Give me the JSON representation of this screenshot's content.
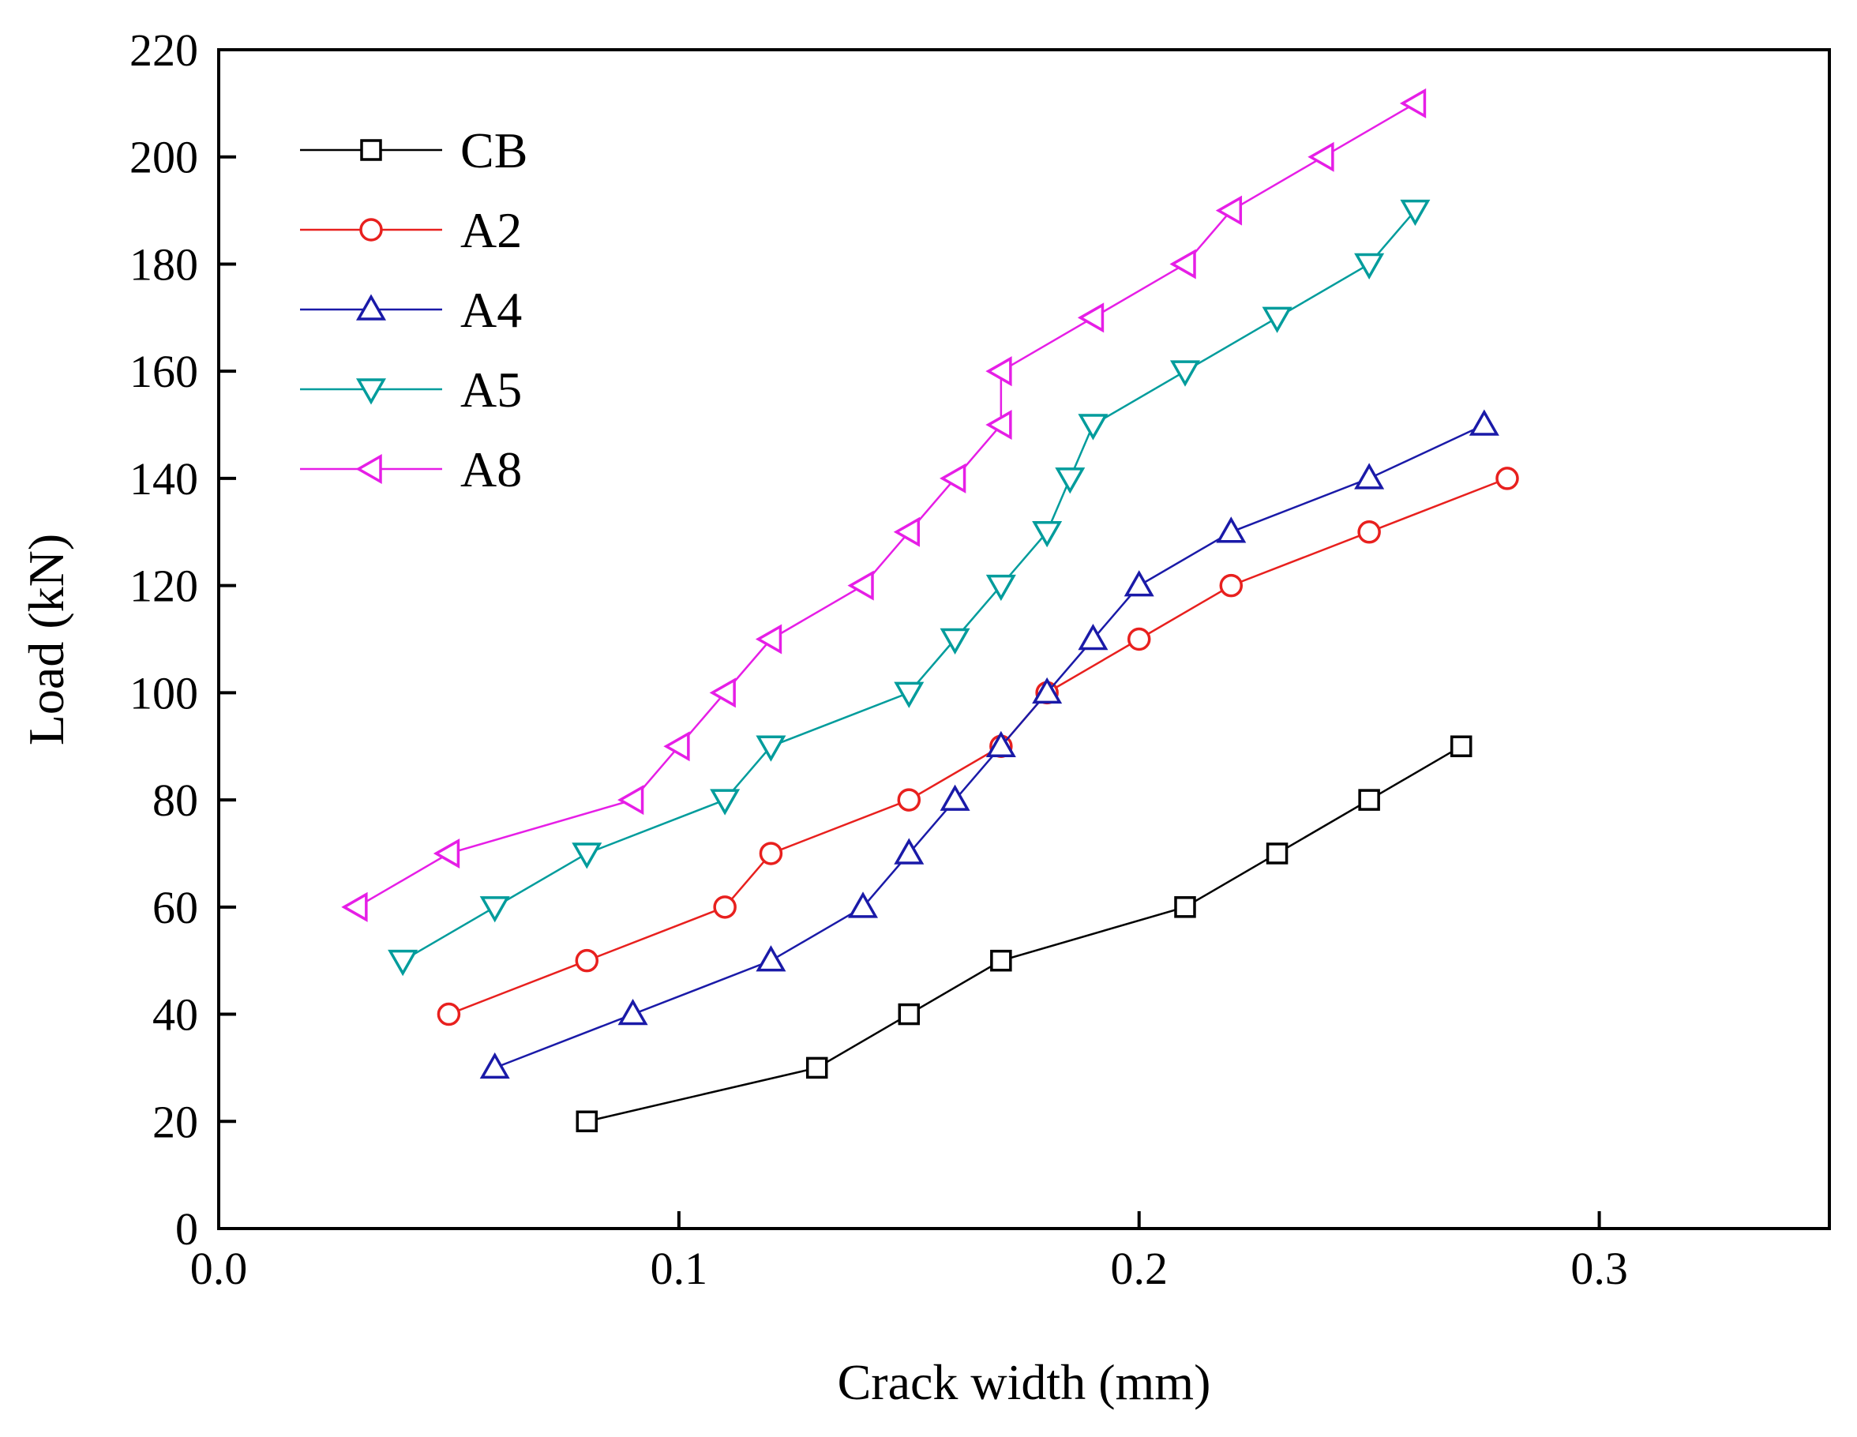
{
  "chart_data": {
    "type": "line",
    "title": "",
    "xlabel": "Crack width (mm)",
    "ylabel": "Load (kN)",
    "xlim": [
      0.0,
      0.35
    ],
    "ylim": [
      0,
      220
    ],
    "xticks": [
      0.0,
      0.1,
      0.2,
      0.3
    ],
    "xtick_labels": [
      "0.0",
      "0.1",
      "0.2",
      "0.3"
    ],
    "yticks": [
      0,
      20,
      40,
      60,
      80,
      100,
      120,
      140,
      160,
      180,
      200,
      220
    ],
    "ytick_labels": [
      "0",
      "20",
      "40",
      "60",
      "80",
      "100",
      "120",
      "140",
      "160",
      "180",
      "200",
      "220"
    ],
    "grid": false,
    "legend_position": "top-left",
    "series": [
      {
        "name": "CB",
        "color": "#000000",
        "marker": "square",
        "x": [
          0.08,
          0.13,
          0.15,
          0.17,
          0.21,
          0.23,
          0.25,
          0.27
        ],
        "y": [
          20,
          30,
          40,
          50,
          60,
          70,
          80,
          90
        ]
      },
      {
        "name": "A2",
        "color": "#e8201e",
        "marker": "circle",
        "x": [
          0.05,
          0.08,
          0.11,
          0.12,
          0.15,
          0.17,
          0.18,
          0.2,
          0.22,
          0.25,
          0.28
        ],
        "y": [
          40,
          50,
          60,
          70,
          80,
          90,
          100,
          110,
          120,
          130,
          140
        ]
      },
      {
        "name": "A4",
        "color": "#1a1aa8",
        "marker": "triangle-up",
        "x": [
          0.06,
          0.09,
          0.12,
          0.14,
          0.15,
          0.16,
          0.17,
          0.18,
          0.19,
          0.2,
          0.22,
          0.25,
          0.275
        ],
        "y": [
          30,
          40,
          50,
          60,
          70,
          80,
          90,
          100,
          110,
          120,
          130,
          140,
          150
        ]
      },
      {
        "name": "A5",
        "color": "#009c9c",
        "marker": "triangle-down",
        "x": [
          0.04,
          0.06,
          0.08,
          0.11,
          0.12,
          0.15,
          0.16,
          0.17,
          0.18,
          0.185,
          0.19,
          0.21,
          0.23,
          0.25,
          0.26
        ],
        "y": [
          50,
          60,
          70,
          80,
          90,
          100,
          110,
          120,
          130,
          140,
          150,
          160,
          170,
          180,
          190
        ]
      },
      {
        "name": "A8",
        "color": "#e61ee6",
        "marker": "triangle-left",
        "x": [
          0.03,
          0.05,
          0.09,
          0.1,
          0.11,
          0.12,
          0.14,
          0.15,
          0.16,
          0.17,
          0.17,
          0.19,
          0.21,
          0.22,
          0.24,
          0.26
        ],
        "y": [
          60,
          70,
          80,
          90,
          100,
          110,
          120,
          130,
          140,
          150,
          160,
          170,
          180,
          190,
          200,
          210
        ]
      }
    ]
  }
}
